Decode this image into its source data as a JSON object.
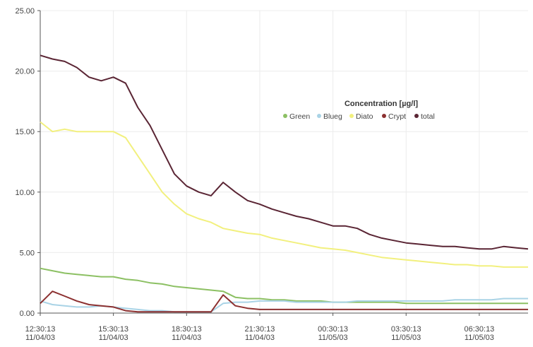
{
  "chart_data": {
    "type": "line",
    "legend_title": "Concentration [µg/l]",
    "x": [
      "2003-11-04T12:30:13",
      "2003-11-04T13:00:13",
      "2003-11-04T13:30:13",
      "2003-11-04T14:00:13",
      "2003-11-04T14:30:13",
      "2003-11-04T15:00:13",
      "2003-11-04T15:30:13",
      "2003-11-04T16:00:13",
      "2003-11-04T16:30:13",
      "2003-11-04T17:00:13",
      "2003-11-04T17:30:13",
      "2003-11-04T18:00:13",
      "2003-11-04T18:30:13",
      "2003-11-04T19:00:13",
      "2003-11-04T19:30:13",
      "2003-11-04T20:00:13",
      "2003-11-04T20:30:13",
      "2003-11-04T21:00:13",
      "2003-11-04T21:30:13",
      "2003-11-04T22:00:13",
      "2003-11-04T22:30:13",
      "2003-11-04T23:00:13",
      "2003-11-04T23:30:13",
      "2003-11-05T00:00:13",
      "2003-11-05T00:30:13",
      "2003-11-05T01:00:13",
      "2003-11-05T01:30:13",
      "2003-11-05T02:00:13",
      "2003-11-05T02:30:13",
      "2003-11-05T03:00:13",
      "2003-11-05T03:30:13",
      "2003-11-05T04:00:13",
      "2003-11-05T04:30:13",
      "2003-11-05T05:00:13",
      "2003-11-05T05:30:13",
      "2003-11-05T06:00:13",
      "2003-11-05T06:30:13",
      "2003-11-05T07:00:13",
      "2003-11-05T07:30:13",
      "2003-11-05T08:00:13",
      "2003-11-05T08:30:13"
    ],
    "series": [
      {
        "name": "Green",
        "color": "#8cc063",
        "values": [
          3.7,
          3.5,
          3.3,
          3.2,
          3.1,
          3.0,
          3.0,
          2.8,
          2.7,
          2.5,
          2.4,
          2.2,
          2.1,
          2.0,
          1.9,
          1.8,
          1.3,
          1.2,
          1.2,
          1.1,
          1.1,
          1.0,
          1.0,
          1.0,
          0.9,
          0.9,
          0.9,
          0.9,
          0.9,
          0.9,
          0.8,
          0.8,
          0.8,
          0.8,
          0.8,
          0.8,
          0.8,
          0.8,
          0.8,
          0.8,
          0.8
        ]
      },
      {
        "name": "Blueg",
        "color": "#a9d3e6",
        "values": [
          1.0,
          0.7,
          0.6,
          0.5,
          0.5,
          0.6,
          0.5,
          0.4,
          0.3,
          0.2,
          0.2,
          0.1,
          0.1,
          0.1,
          0.1,
          0.8,
          0.9,
          0.9,
          1.0,
          1.0,
          1.0,
          0.9,
          0.9,
          0.9,
          0.9,
          0.9,
          1.0,
          1.0,
          1.0,
          1.0,
          1.0,
          1.0,
          1.0,
          1.0,
          1.1,
          1.1,
          1.1,
          1.1,
          1.2,
          1.2,
          1.2
        ]
      },
      {
        "name": "Diato",
        "color": "#f2f07e",
        "values": [
          15.8,
          15.0,
          15.2,
          15.0,
          15.0,
          15.0,
          15.0,
          14.5,
          13.0,
          11.5,
          10.0,
          9.0,
          8.2,
          7.8,
          7.5,
          7.0,
          6.8,
          6.6,
          6.5,
          6.2,
          6.0,
          5.8,
          5.6,
          5.4,
          5.3,
          5.2,
          5.0,
          4.8,
          4.6,
          4.5,
          4.4,
          4.3,
          4.2,
          4.1,
          4.0,
          4.0,
          3.9,
          3.9,
          3.8,
          3.8,
          3.8
        ]
      },
      {
        "name": "Crypt",
        "color": "#8c3030",
        "values": [
          0.8,
          1.8,
          1.4,
          1.0,
          0.7,
          0.6,
          0.5,
          0.2,
          0.1,
          0.1,
          0.1,
          0.1,
          0.1,
          0.1,
          0.1,
          1.5,
          0.6,
          0.4,
          0.3,
          0.3,
          0.3,
          0.3,
          0.3,
          0.3,
          0.3,
          0.3,
          0.3,
          0.3,
          0.3,
          0.3,
          0.3,
          0.3,
          0.3,
          0.3,
          0.3,
          0.3,
          0.3,
          0.3,
          0.3,
          0.3,
          0.3
        ]
      },
      {
        "name": "total",
        "color": "#5a2534",
        "values": [
          21.3,
          21.0,
          20.8,
          20.3,
          19.5,
          19.2,
          19.5,
          19.0,
          17.0,
          15.5,
          13.5,
          11.5,
          10.5,
          10.0,
          9.7,
          10.8,
          10.0,
          9.3,
          9.0,
          8.6,
          8.3,
          8.0,
          7.8,
          7.5,
          7.2,
          7.2,
          7.0,
          6.5,
          6.2,
          6.0,
          5.8,
          5.7,
          5.6,
          5.5,
          5.5,
          5.4,
          5.3,
          5.3,
          5.5,
          5.4,
          5.3
        ]
      }
    ],
    "xlim": [
      "2003-11-04T12:30:13",
      "2003-11-05T08:30:13"
    ],
    "xticks": [
      {
        "value": "2003-11-04T12:30:13",
        "label": "12:30:13\n11/04/03"
      },
      {
        "value": "2003-11-04T15:30:13",
        "label": "15:30:13\n11/04/03"
      },
      {
        "value": "2003-11-04T18:30:13",
        "label": "18:30:13\n11/04/03"
      },
      {
        "value": "2003-11-04T21:30:13",
        "label": "21:30:13\n11/04/03"
      },
      {
        "value": "2003-11-05T00:30:13",
        "label": "00:30:13\n11/05/03"
      },
      {
        "value": "2003-11-05T03:30:13",
        "label": "03:30:13\n11/05/03"
      },
      {
        "value": "2003-11-05T06:30:13",
        "label": "06:30:13\n11/05/03"
      }
    ],
    "ylim": [
      0,
      25
    ],
    "yticks": [
      {
        "value": 0,
        "label": "0.00"
      },
      {
        "value": 5,
        "label": "5.00"
      },
      {
        "value": 10,
        "label": "10.00"
      },
      {
        "value": 15,
        "label": "15.00"
      },
      {
        "value": 20,
        "label": "20.00"
      },
      {
        "value": 25,
        "label": "25.00"
      }
    ],
    "grid": true
  }
}
